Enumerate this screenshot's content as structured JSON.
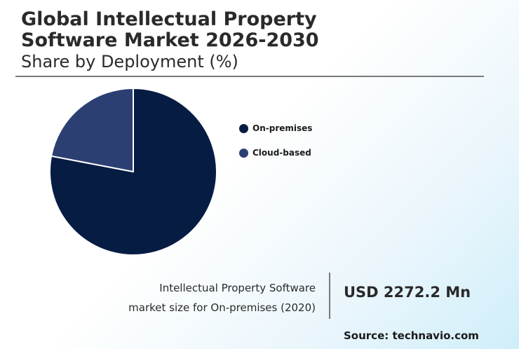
{
  "header": {
    "title_line1": "Global Intellectual Property",
    "title_line2": "Software Market 2026-2030",
    "subtitle": "Share by Deployment (%)"
  },
  "chart_data": {
    "type": "pie",
    "title": "Global Intellectual Property Software Market 2026-2030",
    "subtitle": "Share by Deployment (%)",
    "categories": [
      "On-premises",
      "Cloud-based"
    ],
    "values": [
      78,
      22
    ],
    "colors": [
      "#061c43",
      "#2b3f73"
    ],
    "start_angle_deg": 0,
    "direction": "clockwise",
    "legend_position": "right"
  },
  "stat": {
    "label_line1": "Intellectual Property Software",
    "label_line2": "market size for On-premises (2020)",
    "value": "USD 2272.2 Mn"
  },
  "source": "Source: technavio.com"
}
